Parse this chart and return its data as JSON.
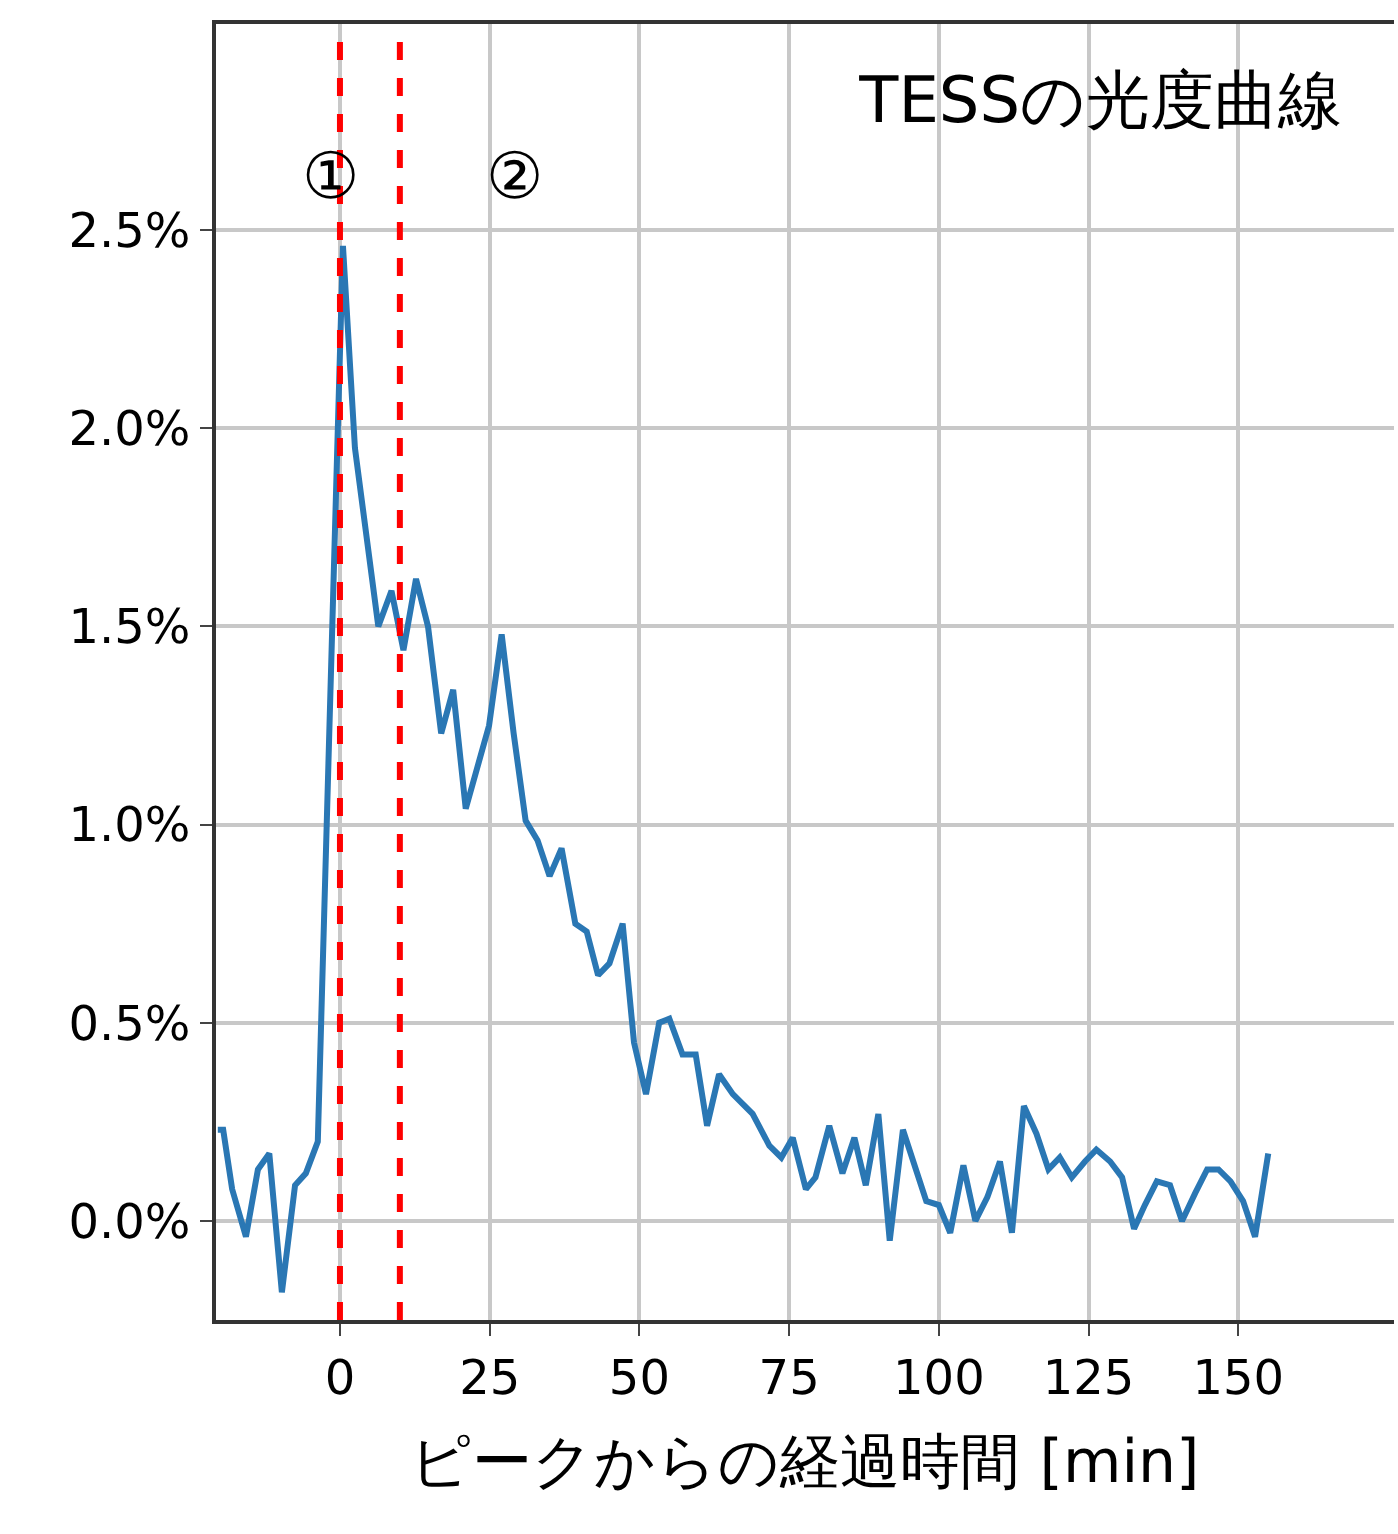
{
  "chart_data": {
    "type": "line",
    "title": "TESSの光度曲線",
    "xlabel": "ピークからの経過時間 [min]",
    "x": [
      -20.4,
      -19.5,
      -18,
      -15.7,
      -13.7,
      -11.8,
      -9.7,
      -7.5,
      -5.7,
      -3.7,
      0.5,
      2.5,
      6.4,
      8.6,
      10.6,
      12.7,
      14.7,
      16.9,
      18.9,
      21,
      24.9,
      27,
      29,
      31,
      33,
      35,
      37,
      39.3,
      41.2,
      43.1,
      45,
      47.2,
      49.1,
      51.1,
      53.3,
      55,
      57.2,
      59.4,
      61.3,
      63.3,
      65.6,
      68.9,
      71.7,
      73.7,
      75.6,
      77.8,
      79.4,
      81.7,
      83.9,
      85.9,
      87.8,
      89.9,
      91.8,
      94,
      97.9,
      100,
      101.9,
      104.1,
      106.1,
      108.1,
      110.2,
      112.2,
      114.2,
      116.3,
      118.3,
      120.2,
      122.2,
      124.4,
      126.3,
      128.6,
      130.6,
      132.6,
      134.4,
      136.4,
      138.6,
      140.6,
      142.8,
      144.8,
      146.7,
      148.7,
      150.8,
      152.8,
      155
    ],
    "series": [
      {
        "color": "#2a77b4",
        "values": [
          0.23,
          0.23,
          0.08,
          -0.04,
          0.13,
          0.17,
          -0.18,
          0.09,
          0.12,
          0.2,
          2.46,
          1.95,
          1.5,
          1.59,
          1.44,
          1.62,
          1.5,
          1.23,
          1.34,
          1.04,
          1.25,
          1.48,
          1.23,
          1.01,
          0.96,
          0.87,
          0.94,
          0.75,
          0.73,
          0.62,
          0.65,
          0.75,
          0.45,
          0.32,
          0.5,
          0.51,
          0.42,
          0.42,
          0.24,
          0.37,
          0.32,
          0.27,
          0.19,
          0.16,
          0.21,
          0.08,
          0.11,
          0.24,
          0.12,
          0.21,
          0.09,
          0.27,
          -0.05,
          0.23,
          0.05,
          0.04,
          -0.03,
          0.14,
          0.0,
          0.06,
          0.15,
          -0.03,
          0.29,
          0.22,
          0.13,
          0.16,
          0.11,
          0.15,
          0.18,
          0.15,
          0.11,
          -0.02,
          0.04,
          0.1,
          0.09,
          0.0,
          0.07,
          0.13,
          0.13,
          0.1,
          0.05,
          -0.04,
          0.17
        ]
      }
    ],
    "xlim": [
      -20.7,
      176
    ],
    "xticks": [
      0,
      25,
      50,
      75,
      100,
      125,
      150
    ],
    "ylim": [
      -0.25,
      3.02
    ],
    "yticks": [
      {
        "value": 0,
        "label": "0.0%"
      },
      {
        "value": 0.5,
        "label": "0.5%"
      },
      {
        "value": 1,
        "label": "1.0%"
      },
      {
        "value": 1.5,
        "label": "1.5%"
      },
      {
        "value": 2,
        "label": "2.0%"
      },
      {
        "value": 2.5,
        "label": "2.5%"
      }
    ],
    "ref_lines": [
      {
        "axis": "x",
        "value": 0,
        "color": "#ff0000",
        "line_style": "dashed"
      },
      {
        "axis": "x",
        "value": 10,
        "color": "#ff0000",
        "line_style": "dashed"
      }
    ],
    "annotations": [
      "①",
      "②"
    ],
    "grid": true,
    "marker": "none",
    "line_style": "solid"
  }
}
